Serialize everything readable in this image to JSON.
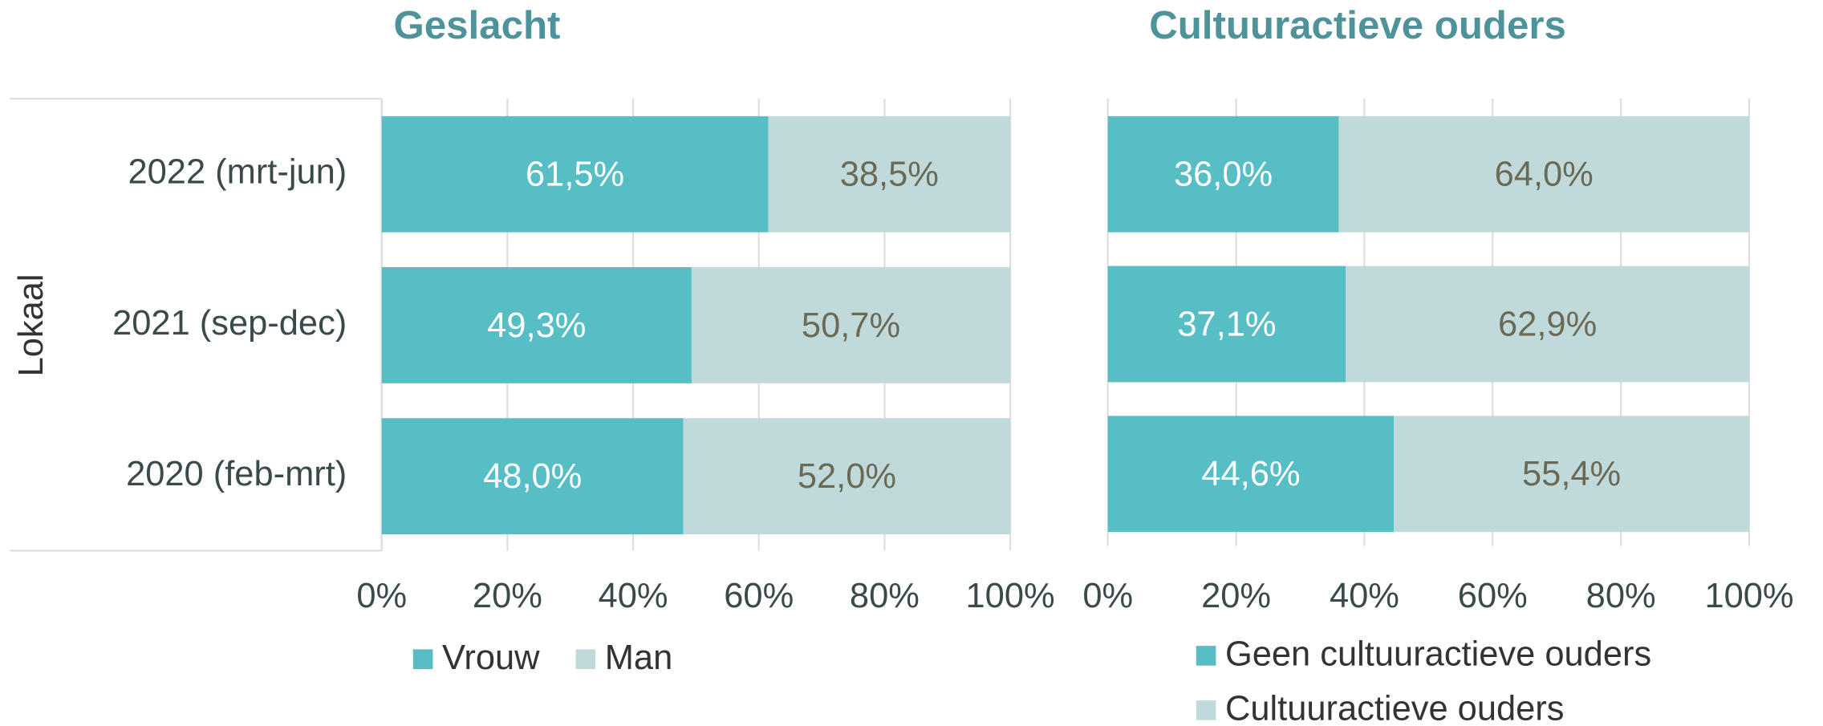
{
  "chart_data": [
    {
      "type": "stacked_bar_horizontal",
      "title": "Geslacht",
      "y_label": "Lokaal",
      "categories": [
        "2022 (mrt-jun)",
        "2021 (sep-dec)",
        "2020 (feb-mrt)"
      ],
      "series": [
        {
          "name": "Vrouw",
          "color": "#58bec5",
          "values": [
            61.5,
            49.3,
            48.0
          ],
          "value_labels": [
            "61,5%",
            "49,3%",
            "48,0%"
          ]
        },
        {
          "name": "Man",
          "color": "#c0dadc",
          "values": [
            38.5,
            50.7,
            52.0
          ],
          "value_labels": [
            "38,5%",
            "50,7%",
            "52,0%"
          ]
        }
      ],
      "xlim": [
        0,
        100
      ],
      "xticks": [
        {
          "value": 0,
          "label": "0%"
        },
        {
          "value": 20,
          "label": "20%"
        },
        {
          "value": 40,
          "label": "40%"
        },
        {
          "value": 60,
          "label": "60%"
        },
        {
          "value": 80,
          "label": "80%"
        },
        {
          "value": 100,
          "label": "100%"
        }
      ],
      "grid": true,
      "legend": "bottom"
    },
    {
      "type": "stacked_bar_horizontal",
      "title": "Cultuuractieve ouders",
      "series": [
        {
          "name": "Geen cultuuractieve ouders",
          "color": "#58bec5",
          "values": [
            36.0,
            37.1,
            44.6
          ],
          "value_labels": [
            "36,0%",
            "37,1%",
            "44,6%"
          ]
        },
        {
          "name": "Cultuuractieve ouders",
          "color": "#c0dadc",
          "values": [
            64.0,
            62.9,
            55.4
          ],
          "value_labels": [
            "64,0%",
            "62,9%",
            "55,4%"
          ]
        }
      ],
      "xlim": [
        0,
        100
      ],
      "xticks": [
        {
          "value": 0,
          "label": "0%"
        },
        {
          "value": 20,
          "label": "20%"
        },
        {
          "value": 40,
          "label": "40%"
        },
        {
          "value": 60,
          "label": "60%"
        },
        {
          "value": 80,
          "label": "80%"
        },
        {
          "value": 100,
          "label": "100%"
        }
      ],
      "grid": true,
      "legend": "bottom"
    }
  ]
}
